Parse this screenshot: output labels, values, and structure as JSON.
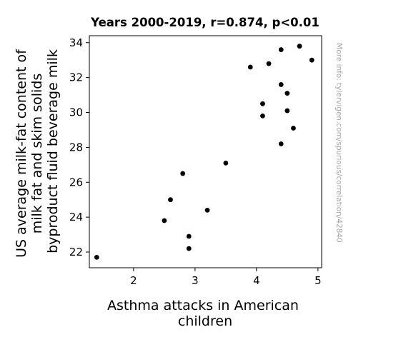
{
  "chart_data": {
    "type": "scatter",
    "title": "Years 2000-2019, r=0.874, p<0.01",
    "xlabel_lines": [
      "Asthma attacks in American",
      "children"
    ],
    "ylabel_lines": [
      "US average milk-fat content of",
      "milk fat and skim solids",
      "byproduct fluid beverage milk"
    ],
    "xlim": [
      1.28,
      5.06
    ],
    "ylim": [
      21.1,
      34.4
    ],
    "xticks": [
      2,
      3,
      4,
      5
    ],
    "yticks": [
      22,
      24,
      26,
      28,
      30,
      32,
      34
    ],
    "grid": false,
    "marker_color": "#000000",
    "points": [
      {
        "x": 1.4,
        "y": 21.7
      },
      {
        "x": 2.5,
        "y": 23.8
      },
      {
        "x": 2.6,
        "y": 25.0
      },
      {
        "x": 2.8,
        "y": 26.5
      },
      {
        "x": 2.9,
        "y": 22.9
      },
      {
        "x": 2.9,
        "y": 22.2
      },
      {
        "x": 3.2,
        "y": 24.4
      },
      {
        "x": 3.5,
        "y": 27.1
      },
      {
        "x": 3.9,
        "y": 32.6
      },
      {
        "x": 4.1,
        "y": 30.5
      },
      {
        "x": 4.1,
        "y": 29.8
      },
      {
        "x": 4.2,
        "y": 32.8
      },
      {
        "x": 4.4,
        "y": 33.6
      },
      {
        "x": 4.4,
        "y": 31.6
      },
      {
        "x": 4.4,
        "y": 28.2
      },
      {
        "x": 4.5,
        "y": 31.1
      },
      {
        "x": 4.5,
        "y": 30.1
      },
      {
        "x": 4.6,
        "y": 29.1
      },
      {
        "x": 4.7,
        "y": 33.8
      },
      {
        "x": 4.9,
        "y": 33.0
      }
    ]
  },
  "side_note": "More info: tylervigen.com/spurious/correlation/42840"
}
